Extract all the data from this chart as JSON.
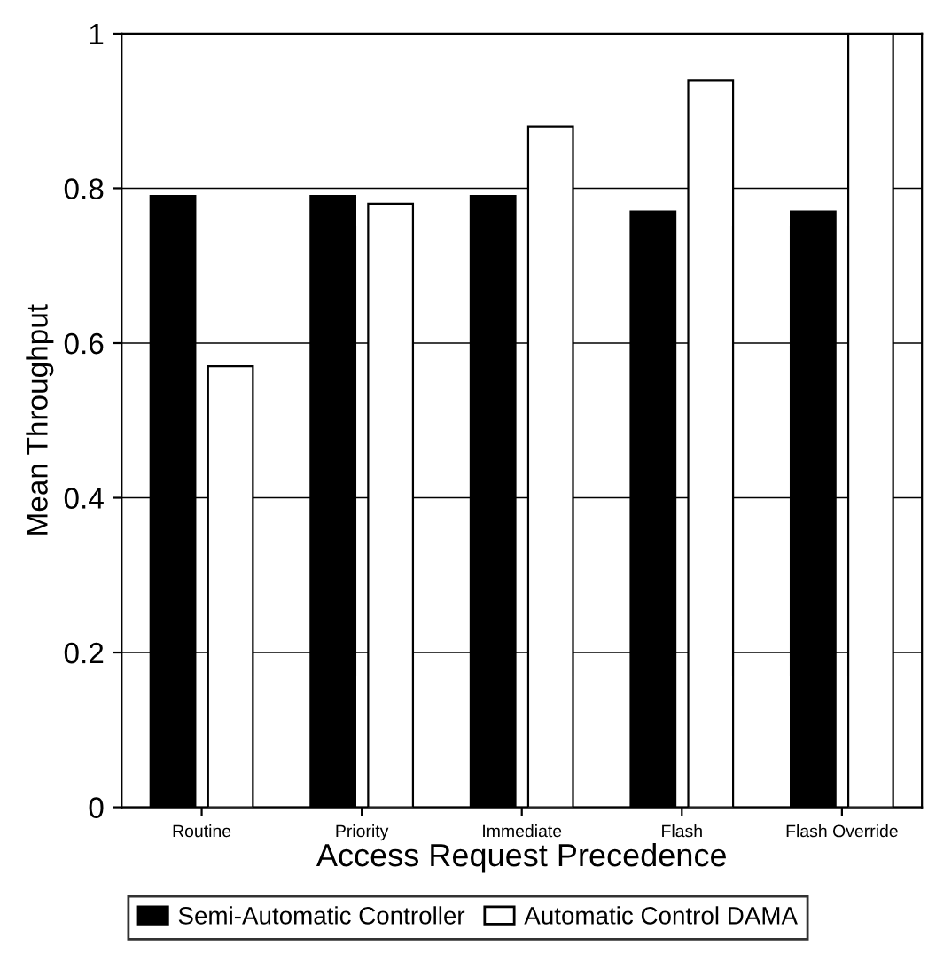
{
  "chart_data": {
    "type": "bar",
    "xlabel": "Access Request Precedence",
    "ylabel": "Mean Throughput",
    "categories": [
      "Routine",
      "Priority",
      "Immediate",
      "Flash",
      "Flash Override"
    ],
    "series": [
      {
        "name": "Semi-Automatic Controller",
        "color": "#000000",
        "values": [
          0.79,
          0.79,
          0.79,
          0.77,
          0.77
        ]
      },
      {
        "name": "Automatic Control DAMA",
        "color": "#ffffff",
        "values": [
          0.57,
          0.78,
          0.88,
          0.94,
          1.0
        ]
      }
    ],
    "ylim": [
      0,
      1
    ],
    "yticks": [
      0,
      0.2,
      0.4,
      0.6,
      0.8,
      1
    ],
    "grid": "y",
    "legend": "bottom"
  }
}
